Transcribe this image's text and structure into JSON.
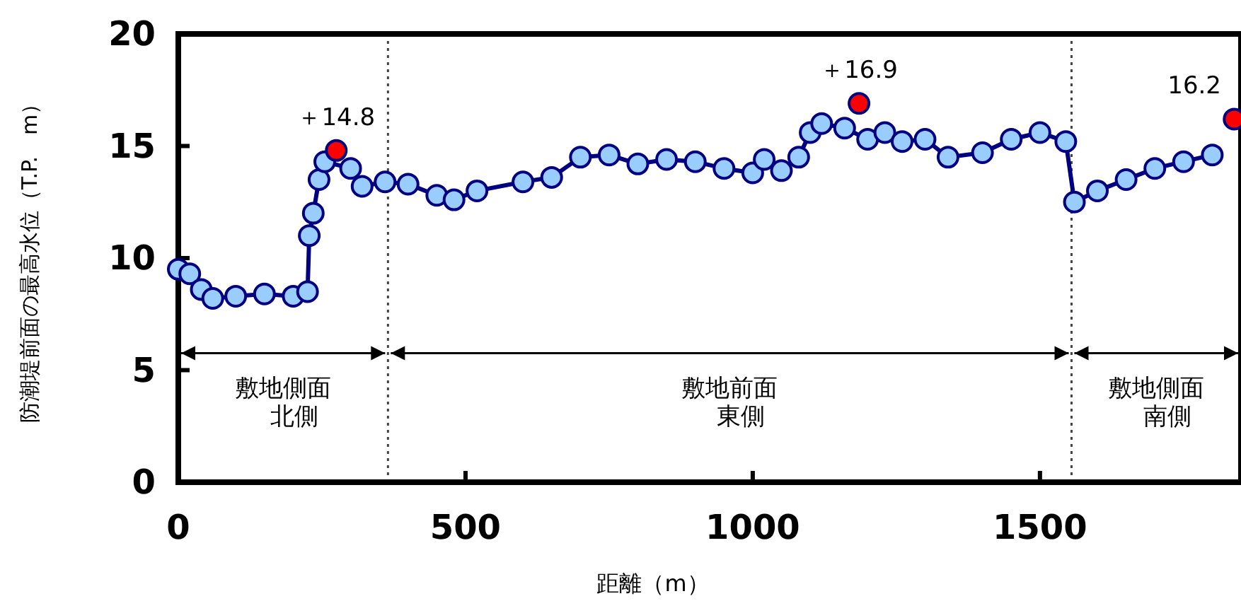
{
  "chart_data": {
    "type": "line",
    "xlabel": "距離（m）",
    "ylabel": "防潮堤前面の最高水位（T.P.　m）",
    "xlim": [
      0,
      1850
    ],
    "ylim": [
      0,
      20
    ],
    "xticks": [
      0,
      500,
      1000,
      1500
    ],
    "yticks": [
      0,
      5,
      10,
      15,
      20
    ],
    "grid": false,
    "marker": "circle",
    "line_style": "solid",
    "series": [
      {
        "color": "#000080",
        "x": [
          0,
          20,
          40,
          60,
          100,
          150,
          200,
          225,
          228,
          235,
          245,
          255,
          300,
          320,
          360,
          400,
          450,
          480,
          520,
          600,
          650,
          700,
          750,
          800,
          850,
          900,
          950,
          1000,
          1020,
          1050,
          1080,
          1100,
          1120,
          1160,
          1200,
          1230,
          1260,
          1300,
          1340,
          1400,
          1450,
          1500,
          1545,
          1560,
          1600,
          1650,
          1700,
          1750,
          1800
        ],
        "values": [
          9.5,
          9.3,
          8.6,
          8.2,
          8.3,
          8.4,
          8.3,
          8.5,
          11.0,
          12.0,
          13.5,
          14.3,
          14.0,
          13.2,
          13.4,
          13.3,
          12.8,
          12.6,
          13.0,
          13.4,
          13.6,
          14.5,
          14.6,
          14.2,
          14.4,
          14.3,
          14.0,
          13.8,
          14.4,
          13.9,
          14.5,
          15.6,
          16.0,
          15.8,
          15.3,
          15.6,
          15.2,
          15.3,
          14.5,
          14.7,
          15.3,
          15.6,
          15.2,
          12.5,
          13.0,
          13.5,
          14.0,
          14.3,
          14.6
        ]
      },
      {
        "type": "scatter",
        "color": "#ff0000",
        "x": [
          275,
          1185,
          1838
        ],
        "values": [
          14.8,
          16.9,
          16.2
        ],
        "value_labels": [
          "＋14.8",
          "＋16.9",
          "16.2"
        ]
      }
    ],
    "ref_lines": [
      {
        "axis": "x",
        "value": 365,
        "line_style": "dotted"
      },
      {
        "axis": "x",
        "value": 1555,
        "line_style": "dotted"
      }
    ],
    "annotations": [
      "敷地側面",
      "北側",
      "敷地前面",
      "東側",
      "敷地側面",
      "南側"
    ]
  }
}
